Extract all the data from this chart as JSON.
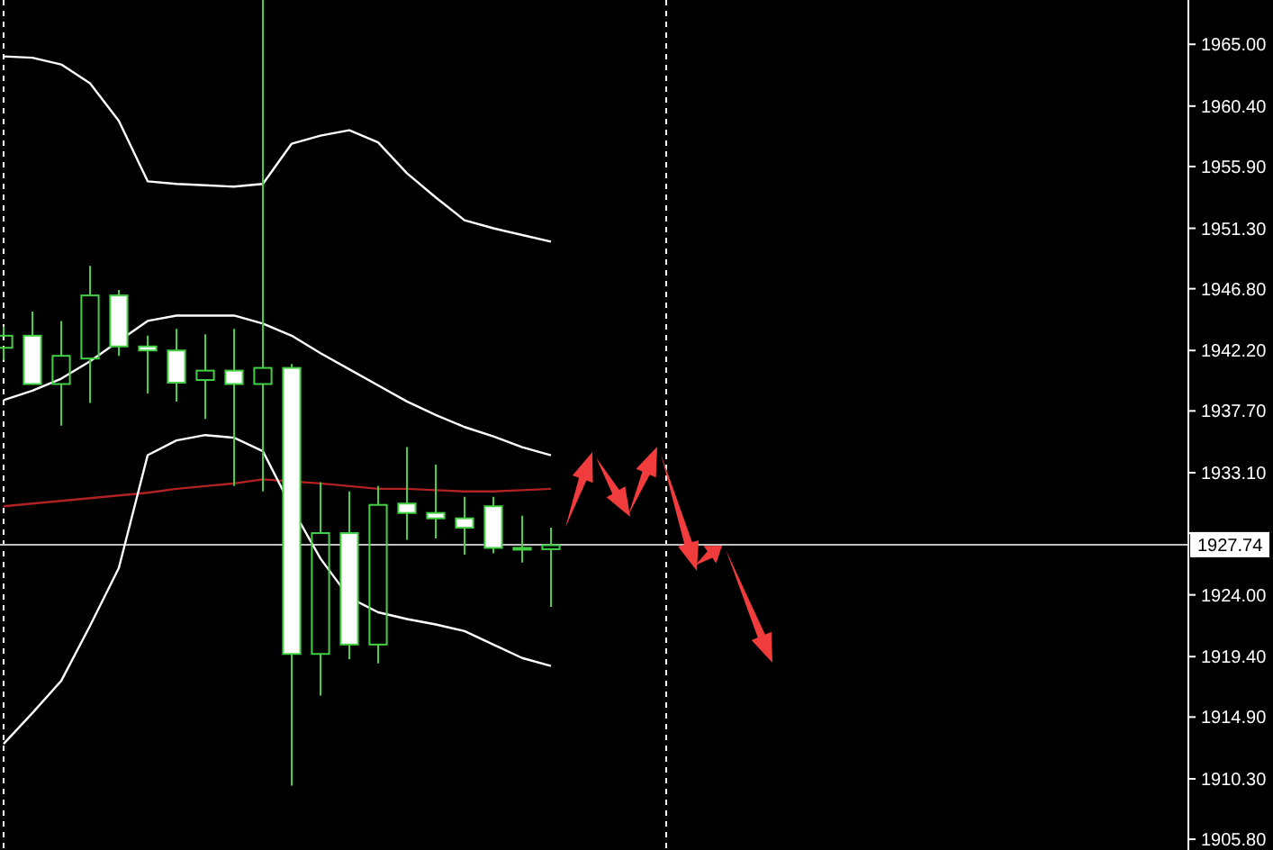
{
  "chart_data": {
    "type": "candlestick",
    "color": "#44d044",
    "tick_labels": "y",
    "grid": false,
    "categories": [
      null,
      null,
      null,
      null,
      null,
      null,
      null,
      null,
      null,
      null,
      null,
      null,
      null,
      null,
      null,
      null,
      null,
      null,
      null,
      null,
      null,
      null,
      null,
      null,
      null,
      null,
      null,
      null,
      null,
      null,
      null,
      null,
      null,
      null,
      null,
      null,
      null,
      null,
      null,
      null,
      null,
      null
    ],
    "ohlc": [
      [
        1942.4,
        1944.0,
        1941.5,
        1943.3
      ],
      [
        1943.3,
        1945.1,
        1939.7,
        1939.7
      ],
      [
        1939.7,
        1944.4,
        1936.6,
        1941.8
      ],
      [
        1941.6,
        1948.5,
        1938.3,
        1946.3
      ],
      [
        1946.3,
        1946.7,
        1941.8,
        1942.5
      ],
      [
        1942.5,
        1943.3,
        1939.0,
        1942.2
      ],
      [
        1942.2,
        1943.8,
        1938.4,
        1939.8
      ],
      [
        1940.0,
        1943.4,
        1937.1,
        1940.7
      ],
      [
        1940.7,
        1943.8,
        1932.1,
        1939.7
      ],
      [
        1939.7,
        1968.3,
        1931.7,
        1940.9
      ],
      [
        1940.9,
        1941.2,
        1909.8,
        1919.6
      ],
      [
        1919.6,
        1932.4,
        1916.5,
        1928.6
      ],
      [
        1928.6,
        1931.7,
        1919.2,
        1920.3
      ],
      [
        1920.3,
        1932.1,
        1918.9,
        1930.7
      ],
      [
        1930.8,
        1935.0,
        1928.1,
        1930.1
      ],
      [
        1930.1,
        1933.7,
        1928.2,
        1929.7
      ],
      [
        1929.7,
        1931.3,
        1927.0,
        1929.0
      ],
      [
        1930.6,
        1931.3,
        1927.1,
        1927.5
      ],
      [
        1927.4,
        1929.9,
        1926.4,
        1927.5
      ],
      [
        1927.4,
        1929.0,
        1923.1,
        1927.7
      ],
      null,
      null,
      null,
      null,
      null,
      null,
      null,
      null,
      null,
      null,
      null,
      null,
      null,
      null,
      null,
      null,
      null,
      null,
      null,
      null,
      null,
      null
    ],
    "series": [
      {
        "type": "line",
        "color": "#ffffff",
        "values": [
          1964.1,
          1964.0,
          1963.5,
          1962.1,
          1959.3,
          1954.8,
          1954.6,
          1954.5,
          1954.4,
          1954.6,
          1957.6,
          1958.2,
          1958.6,
          1957.7,
          1955.4,
          1953.6,
          1951.9,
          1951.3,
          1950.8,
          1950.3,
          null,
          null,
          null,
          null,
          null,
          null,
          null,
          null,
          null,
          null,
          null,
          null,
          null,
          null,
          null,
          null,
          null,
          null,
          null,
          null,
          null,
          null
        ]
      },
      {
        "type": "line",
        "color": "#ffffff",
        "values": [
          1938.5,
          1939.2,
          1940.1,
          1941.4,
          1942.9,
          1944.4,
          1944.8,
          1944.8,
          1944.8,
          1944.2,
          1943.3,
          1942.0,
          1940.8,
          1939.6,
          1938.4,
          1937.4,
          1936.5,
          1935.8,
          1935.0,
          1934.4,
          null,
          null,
          null,
          null,
          null,
          null,
          null,
          null,
          null,
          null,
          null,
          null,
          null,
          null,
          null,
          null,
          null,
          null,
          null,
          null,
          null,
          null
        ]
      },
      {
        "type": "line",
        "color": "#b22222",
        "values": [
          1930.6,
          1930.8,
          1931.0,
          1931.2,
          1931.4,
          1931.6,
          1931.9,
          1932.1,
          1932.3,
          1932.6,
          null,
          1932.3,
          1932.1,
          1931.9,
          1931.9,
          1931.8,
          1931.7,
          1931.7,
          1931.8,
          1931.9,
          null,
          null,
          null,
          null,
          null,
          null,
          null,
          null,
          null,
          null,
          null,
          null,
          null,
          null,
          null,
          null,
          null,
          null,
          null,
          null,
          null,
          null
        ]
      },
      {
        "type": "line",
        "color": "#ffffff",
        "values": [
          1912.9,
          1915.2,
          1917.6,
          1921.7,
          1926.0,
          1934.4,
          1935.5,
          1935.9,
          1935.7,
          1934.7,
          1930.5,
          1926.7,
          1923.8,
          1922.7,
          1922.2,
          1921.8,
          1921.3,
          1920.3,
          1919.3,
          1918.7,
          null,
          null,
          null,
          null,
          null,
          null,
          null,
          null,
          null,
          null,
          null,
          null,
          null,
          null,
          null,
          null,
          null,
          null,
          null,
          null,
          null,
          null
        ]
      }
    ],
    "ylim": [
      1905.0,
      1968.3
    ],
    "yticks": [
      {
        "value": 1965,
        "label": "1965.00"
      },
      {
        "value": 1960.4,
        "label": "1960.40"
      },
      {
        "value": 1955.9,
        "label": "1955.90"
      },
      {
        "value": 1951.3,
        "label": "1951.30"
      },
      {
        "value": 1946.8,
        "label": "1946.80"
      },
      {
        "value": 1942.2,
        "label": "1942.20"
      },
      {
        "value": 1937.7,
        "label": "1937.70"
      },
      {
        "value": 1933.1,
        "label": "1933.10"
      },
      {
        "value": 1928.6,
        "label": null
      },
      {
        "value": 1924,
        "label": "1924.00"
      },
      {
        "value": 1919.4,
        "label": "1919.40"
      },
      {
        "value": 1914.9,
        "label": "1914.90"
      },
      {
        "value": 1910.3,
        "label": "1910.30"
      },
      {
        "value": 1905.8,
        "label": "1905.80"
      }
    ],
    "ref_lines": [
      {
        "axis": "y",
        "value": 1927.74,
        "label": "1927.74",
        "color": "#c0c0c0",
        "line_style": "solid"
      }
    ]
  }
}
